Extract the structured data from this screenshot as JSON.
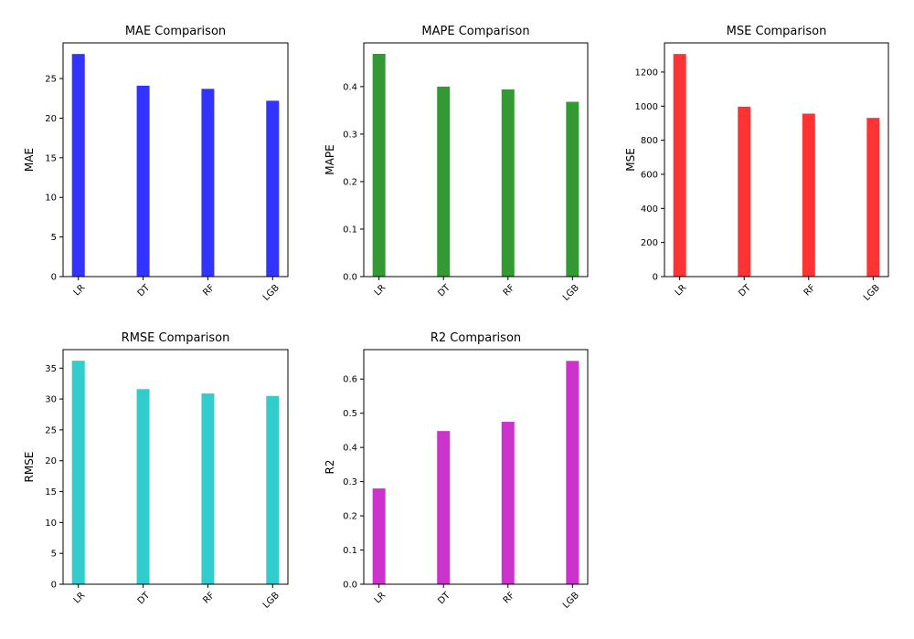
{
  "chart_data": [
    {
      "type": "bar",
      "title": "MAE Comparison",
      "xlabel": "",
      "ylabel": "MAE",
      "categories": [
        "LR",
        "DT",
        "RF",
        "LGB"
      ],
      "values": [
        28.1,
        24.1,
        23.7,
        22.2
      ],
      "ylim": [
        0,
        29.5
      ],
      "yticks": [
        0,
        5,
        10,
        15,
        20,
        25
      ],
      "ytick_labels": [
        "0",
        "5",
        "10",
        "15",
        "20",
        "25"
      ],
      "color": "#3333ff",
      "grid": false
    },
    {
      "type": "bar",
      "title": "MAPE Comparison",
      "xlabel": "",
      "ylabel": "MAPE",
      "categories": [
        "LR",
        "DT",
        "RF",
        "LGB"
      ],
      "values": [
        0.469,
        0.4,
        0.394,
        0.368
      ],
      "ylim": [
        0,
        0.492
      ],
      "yticks": [
        0,
        0.1,
        0.2,
        0.3,
        0.4
      ],
      "ytick_labels": [
        "0.0",
        "0.1",
        "0.2",
        "0.3",
        "0.4"
      ],
      "color": "#339933",
      "grid": false
    },
    {
      "type": "bar",
      "title": "MSE Comparison",
      "xlabel": "",
      "ylabel": "MSE",
      "categories": [
        "LR",
        "DT",
        "RF",
        "LGB"
      ],
      "values": [
        1306,
        997,
        956,
        931
      ],
      "ylim": [
        0,
        1371
      ],
      "yticks": [
        0,
        200,
        400,
        600,
        800,
        1000,
        1200
      ],
      "ytick_labels": [
        "0",
        "200",
        "400",
        "600",
        "800",
        "1000",
        "1200"
      ],
      "color": "#ff3333",
      "grid": false
    },
    {
      "type": "bar",
      "title": "RMSE Comparison",
      "xlabel": "",
      "ylabel": "RMSE",
      "categories": [
        "LR",
        "DT",
        "RF",
        "LGB"
      ],
      "values": [
        36.2,
        31.6,
        30.9,
        30.5
      ],
      "ylim": [
        0,
        38.0
      ],
      "yticks": [
        0,
        5,
        10,
        15,
        20,
        25,
        30,
        35
      ],
      "ytick_labels": [
        "0",
        "5",
        "10",
        "15",
        "20",
        "25",
        "30",
        "35"
      ],
      "color": "#33cccc",
      "grid": false
    },
    {
      "type": "bar",
      "title": "R2 Comparison",
      "xlabel": "",
      "ylabel": "R2",
      "categories": [
        "LR",
        "DT",
        "RF",
        "LGB"
      ],
      "values": [
        0.28,
        0.448,
        0.475,
        0.653
      ],
      "ylim": [
        0,
        0.686
      ],
      "yticks": [
        0,
        0.1,
        0.2,
        0.3,
        0.4,
        0.5,
        0.6
      ],
      "ytick_labels": [
        "0.0",
        "0.1",
        "0.2",
        "0.3",
        "0.4",
        "0.5",
        "0.6"
      ],
      "color": "#cc33cc",
      "grid": false
    }
  ]
}
